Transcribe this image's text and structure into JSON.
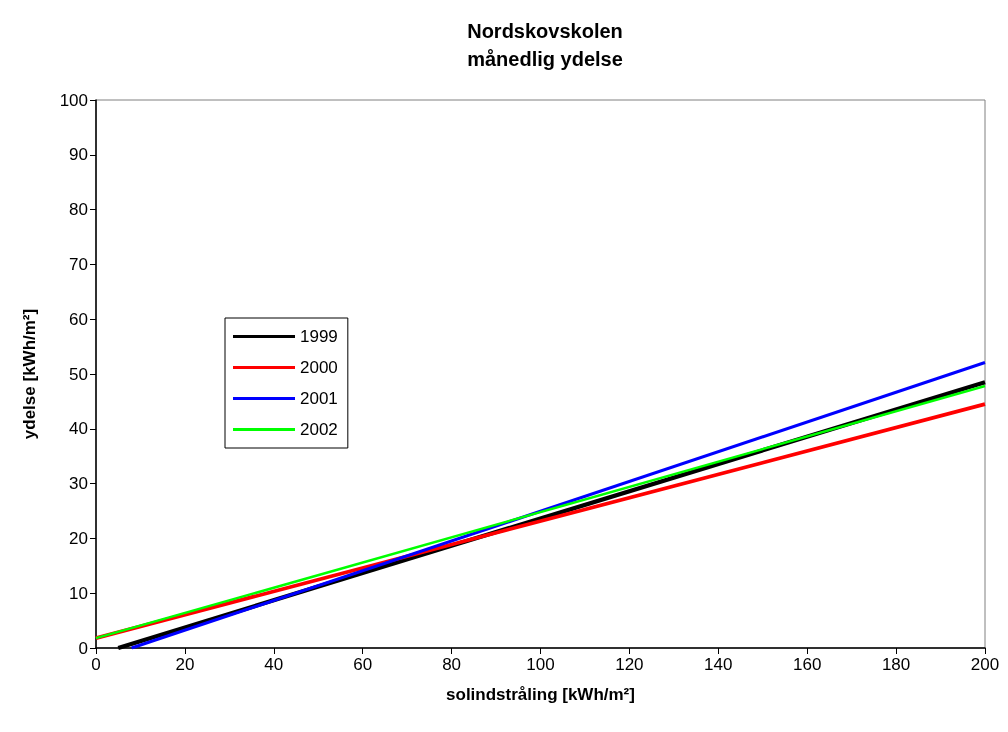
{
  "chart_data": {
    "type": "line",
    "title": "Nordskovskolen\nmånedlig ydelse",
    "xlabel": "solindstråling [kWh/m²]",
    "ylabel": "ydelse [kWh/m²]",
    "xlim": [
      0,
      200
    ],
    "xticks": [
      0,
      20,
      40,
      60,
      80,
      100,
      120,
      140,
      160,
      180,
      200
    ],
    "ylim": [
      0,
      100
    ],
    "yticks": [
      0,
      10,
      20,
      30,
      40,
      50,
      60,
      70,
      80,
      90,
      100
    ],
    "grid": false,
    "legend": "left",
    "marker": "none",
    "line_style": "solid",
    "series": [
      {
        "name": "1999",
        "color": "#000000",
        "x": [
          5,
          200
        ],
        "values": [
          0,
          48.5
        ]
      },
      {
        "name": "2000",
        "color": "#ff0000",
        "x": [
          0,
          200
        ],
        "values": [
          1.8,
          44.5
        ]
      },
      {
        "name": "2001",
        "color": "#0000ff",
        "x": [
          8,
          200
        ],
        "values": [
          0,
          52.1
        ]
      },
      {
        "name": "2002",
        "color": "#00ff00",
        "x": [
          0,
          200
        ],
        "values": [
          1.8,
          47.8
        ]
      }
    ]
  }
}
